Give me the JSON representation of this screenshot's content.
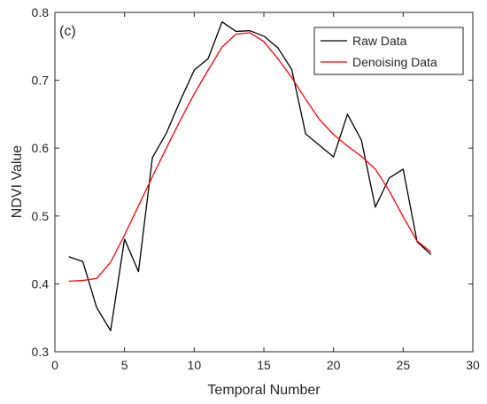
{
  "chart_data": {
    "type": "line",
    "panel_label": "(c)",
    "title": "",
    "xlabel": "Temporal Number",
    "ylabel": "NDVI Value",
    "xlim": [
      0,
      30
    ],
    "ylim": [
      0.3,
      0.8
    ],
    "xticks": [
      0,
      5,
      10,
      15,
      20,
      25,
      30
    ],
    "yticks": [
      0.3,
      0.4,
      0.5,
      0.6,
      0.7,
      0.8
    ],
    "grid": false,
    "legend_position": "top-right",
    "x": [
      1,
      2,
      3,
      4,
      5,
      6,
      7,
      8,
      9,
      10,
      11,
      12,
      13,
      14,
      15,
      16,
      17,
      18,
      19,
      20,
      21,
      22,
      23,
      24,
      25,
      26,
      27
    ],
    "series": [
      {
        "name": "Raw Data",
        "color": "#000000",
        "values": [
          0.44,
          0.433,
          0.365,
          0.331,
          0.466,
          0.418,
          0.586,
          0.622,
          0.67,
          0.715,
          0.732,
          0.786,
          0.772,
          0.773,
          0.765,
          0.748,
          0.716,
          0.621,
          0.604,
          0.587,
          0.65,
          0.612,
          0.513,
          0.556,
          0.569,
          0.462,
          0.443
        ]
      },
      {
        "name": "Denoising Data",
        "color": "#ff0000",
        "values": [
          0.404,
          0.405,
          0.408,
          0.432,
          0.472,
          0.515,
          0.558,
          0.6,
          0.641,
          0.68,
          0.715,
          0.749,
          0.768,
          0.77,
          0.757,
          0.732,
          0.704,
          0.672,
          0.642,
          0.62,
          0.603,
          0.588,
          0.569,
          0.537,
          0.499,
          0.463,
          0.447
        ]
      }
    ]
  }
}
